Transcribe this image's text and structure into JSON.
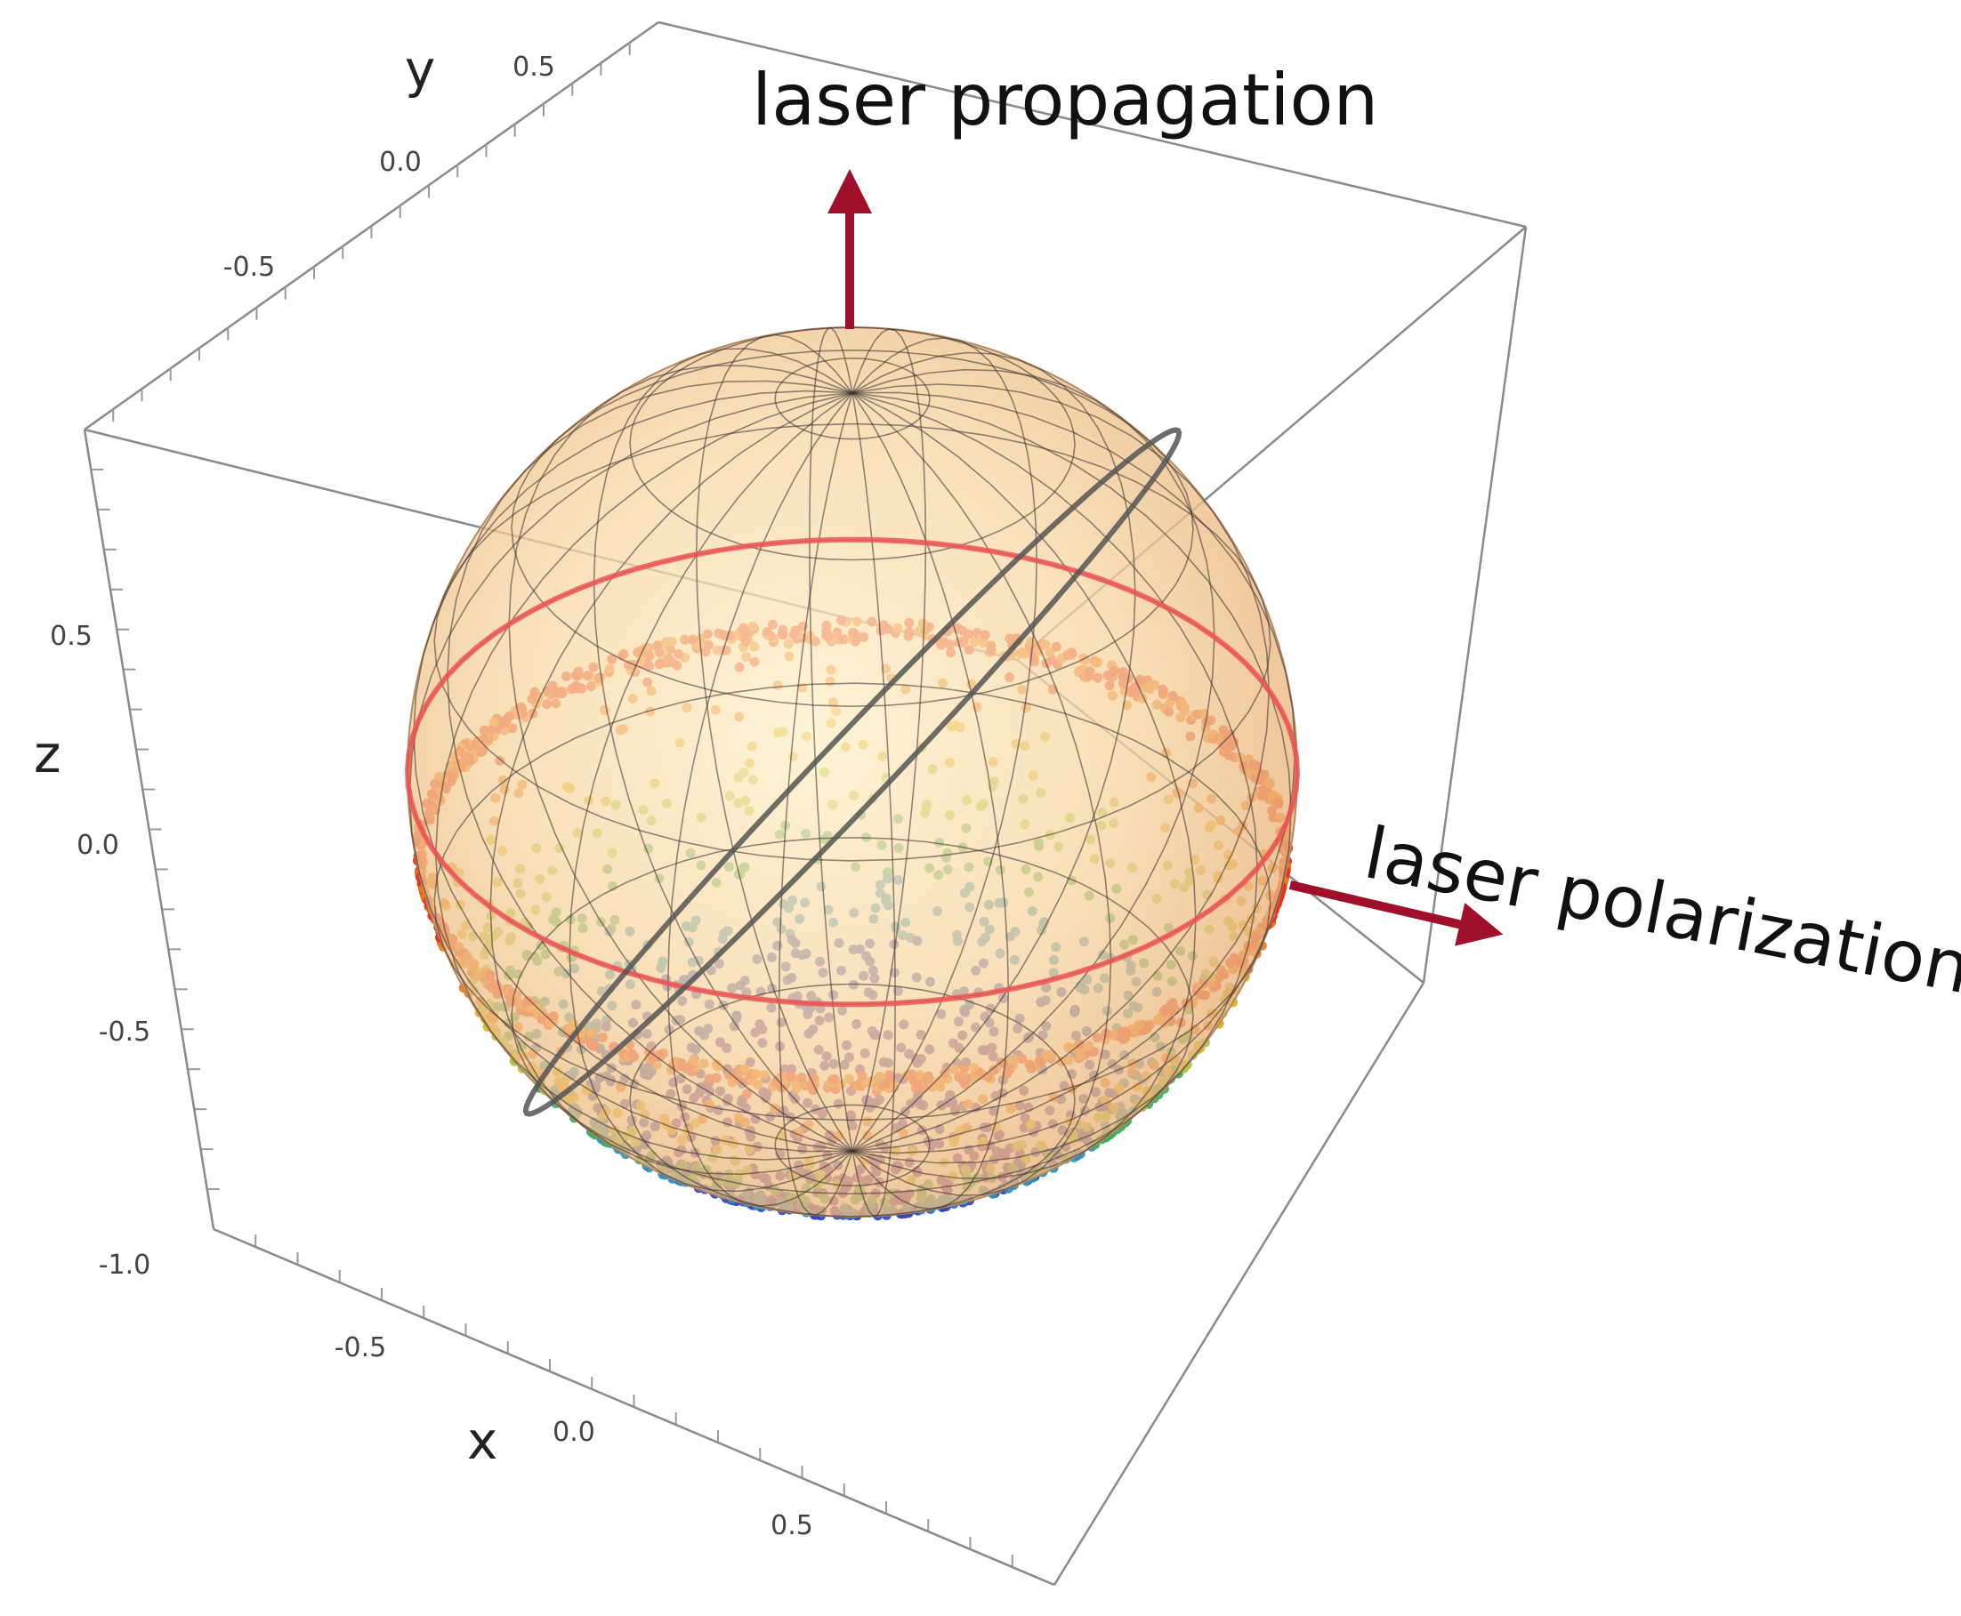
{
  "chart_data": {
    "type": "scatter",
    "projection": "3d",
    "title": "",
    "axes": {
      "x": {
        "label": "x",
        "ticks": [
          "-0.5",
          "0.0",
          "0.5"
        ],
        "range": [
          -1,
          1
        ]
      },
      "y": {
        "label": "y",
        "ticks": [
          "-0.5",
          "0.0",
          "0.5"
        ],
        "range": [
          -1,
          1
        ]
      },
      "z": {
        "label": "z",
        "ticks": [
          "-1.0",
          "-0.5",
          "0.0",
          "0.5"
        ],
        "range": [
          -1,
          1
        ]
      }
    },
    "surface": {
      "kind": "unit sphere",
      "color": "#f2c593",
      "wireframe": true
    },
    "rings": [
      {
        "kind": "latitude circle",
        "z": 0.0,
        "color": "#ee5555"
      },
      {
        "kind": "great circle (tilted)",
        "color": "#555555"
      }
    ],
    "annotations": [
      {
        "id": "propagation",
        "text": "laser propagation",
        "color": "#a0102a"
      },
      {
        "id": "polarization",
        "text": "laser polarization",
        "color": "#a0102a"
      }
    ],
    "scatter": {
      "region": "lower hemisphere, z from -1.0 to -0.2",
      "colormap": "rainbow: red at rim, green/yellow mid, purple at bottom pole",
      "colors": [
        "#5a2ea0",
        "#3346b8",
        "#2a8fc0",
        "#3fae5a",
        "#a8c83a",
        "#e0b020",
        "#f07818",
        "#e8301a"
      ]
    },
    "grid": false,
    "box": true
  }
}
